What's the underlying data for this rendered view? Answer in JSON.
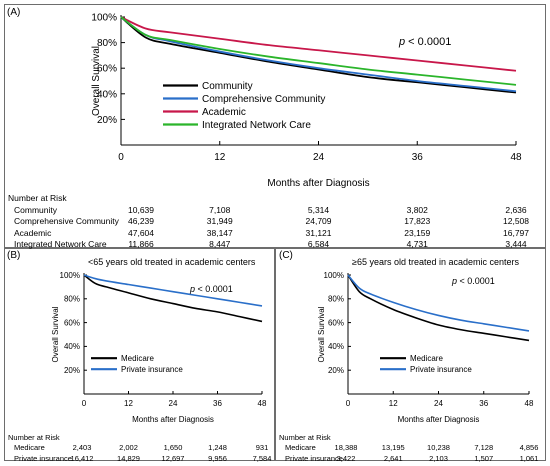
{
  "panels": {
    "A": {
      "label": "(A)",
      "p_value": "p < 0.0001",
      "risk_title": "Number at Risk",
      "risk_rows": [
        {
          "label": "Community",
          "values": [
            "10,639",
            "7,108",
            "5,314",
            "3,802",
            "2,636"
          ]
        },
        {
          "label": "Comprehensive Community",
          "values": [
            "46,239",
            "31,949",
            "24,709",
            "17,823",
            "12,508"
          ]
        },
        {
          "label": "Academic",
          "values": [
            "47,604",
            "38,147",
            "31,121",
            "23,159",
            "16,797"
          ]
        },
        {
          "label": "Integrated Network Care",
          "values": [
            "11,866",
            "8,447",
            "6,584",
            "4,731",
            "3,444"
          ]
        }
      ]
    },
    "B": {
      "label": "(B)",
      "subtitle": "<65 years old treated in academic centers",
      "p_value": "p < 0.0001",
      "risk_title": "Number at Risk",
      "risk_rows": [
        {
          "label": "Medicare",
          "values": [
            "2,403",
            "2,002",
            "1,650",
            "1,248",
            "931"
          ]
        },
        {
          "label": "Private insurance",
          "values": [
            "16,412",
            "14,829",
            "12,697",
            "9,956",
            "7,584"
          ]
        }
      ]
    },
    "C": {
      "label": "(C)",
      "subtitle": "≥65 years old treated in academic centers",
      "p_value": "p < 0.0001",
      "risk_title": "Number at Risk",
      "risk_rows": [
        {
          "label": "Medicare",
          "values": [
            "18,388",
            "13,195",
            "10,238",
            "7,128",
            "4,856"
          ]
        },
        {
          "label": "Private insurance",
          "values": [
            "3,422",
            "2,641",
            "2,103",
            "1,507",
            "1,061"
          ]
        }
      ]
    }
  },
  "colors": {
    "community": "#000000",
    "comprehensive": "#2a6fc9",
    "academic": "#c8174a",
    "integrated": "#2bb52b",
    "medicare": "#000000",
    "private": "#2a6fc9"
  },
  "chart_data": [
    {
      "type": "line",
      "panel": "A",
      "xlabel": "Months after Diagnosis",
      "ylabel": "Overall Survival",
      "xlim": [
        0,
        48
      ],
      "ylim": [
        0,
        100
      ],
      "xticks": [
        "0",
        "12",
        "24",
        "36",
        "48"
      ],
      "yticks": [
        "20%",
        "40%",
        "60%",
        "80%",
        "100%"
      ],
      "legend_position": "center",
      "x": [
        0,
        3,
        6,
        12,
        18,
        24,
        30,
        36,
        42,
        48
      ],
      "series": [
        {
          "name": "Community",
          "color": "#000000",
          "values": [
            100,
            84,
            79,
            72,
            65,
            59,
            53,
            49,
            45,
            41
          ]
        },
        {
          "name": "Comprehensive Community",
          "color": "#2a6fc9",
          "values": [
            100,
            86,
            81,
            73,
            66,
            60,
            55,
            50,
            46,
            42
          ]
        },
        {
          "name": "Academic",
          "color": "#c8174a",
          "values": [
            100,
            91,
            88,
            83,
            78,
            74,
            70,
            66,
            62,
            58
          ]
        },
        {
          "name": "Integrated Network Care",
          "color": "#2bb52b",
          "values": [
            100,
            86,
            82,
            75,
            69,
            64,
            59,
            55,
            51,
            47
          ]
        }
      ]
    },
    {
      "type": "line",
      "panel": "B",
      "title": "<65 years old treated in academic centers",
      "xlabel": "Months after Diagnosis",
      "ylabel": "Overall Survival",
      "xlim": [
        0,
        48
      ],
      "ylim": [
        0,
        100
      ],
      "xticks": [
        "0",
        "12",
        "24",
        "36",
        "48"
      ],
      "yticks": [
        "20%",
        "40%",
        "60%",
        "80%",
        "100%"
      ],
      "legend_position": "bottom-left",
      "x": [
        0,
        3,
        6,
        12,
        18,
        24,
        30,
        36,
        42,
        48
      ],
      "series": [
        {
          "name": "Medicare",
          "color": "#000000",
          "values": [
            100,
            93,
            90,
            85,
            80,
            76,
            72,
            69,
            65,
            61
          ]
        },
        {
          "name": "Private insurance",
          "color": "#2a6fc9",
          "values": [
            100,
            97,
            95,
            92,
            89,
            86,
            83,
            80,
            77,
            74
          ]
        }
      ]
    },
    {
      "type": "line",
      "panel": "C",
      "title": "≥65 years old treated in academic centers",
      "xlabel": "Months after Diagnosis",
      "ylabel": "Overall Survival",
      "xlim": [
        0,
        48
      ],
      "ylim": [
        0,
        100
      ],
      "xticks": [
        "0",
        "12",
        "24",
        "36",
        "48"
      ],
      "yticks": [
        "20%",
        "40%",
        "60%",
        "80%",
        "100%"
      ],
      "legend_position": "bottom-center",
      "x": [
        0,
        3,
        6,
        12,
        18,
        24,
        30,
        36,
        42,
        48
      ],
      "series": [
        {
          "name": "Medicare",
          "color": "#000000",
          "values": [
            100,
            86,
            80,
            71,
            64,
            58,
            54,
            51,
            48,
            45
          ]
        },
        {
          "name": "Private insurance",
          "color": "#2a6fc9",
          "values": [
            100,
            89,
            84,
            77,
            71,
            66,
            62,
            59,
            56,
            53
          ]
        }
      ]
    }
  ]
}
